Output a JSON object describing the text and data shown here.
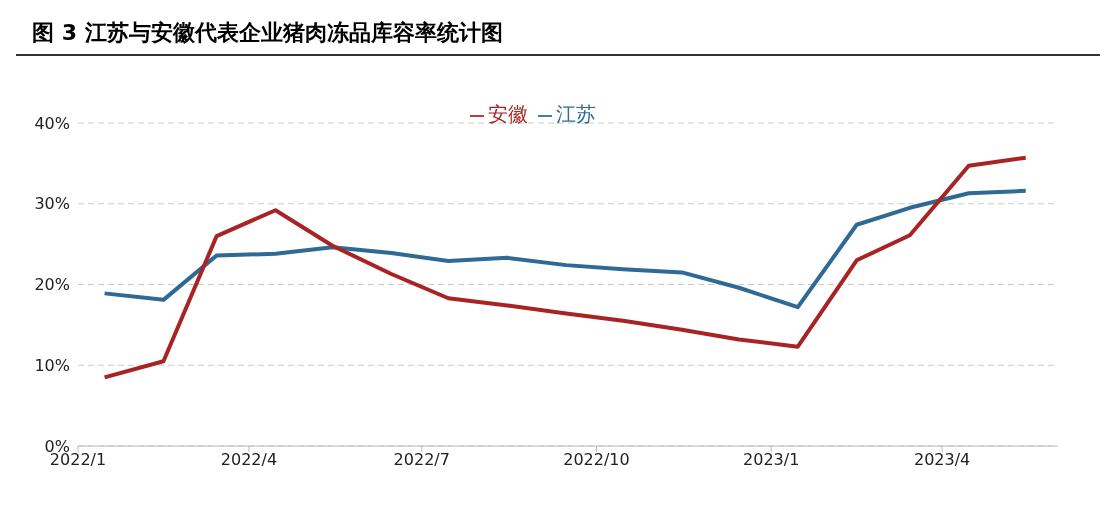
{
  "chart_data": {
    "type": "line",
    "title": "图 3 江苏与安徽代表企业猪肉冻品库容率统计图",
    "x": [
      "2022-01-15",
      "2022-02-15",
      "2022-03-15",
      "2022-04-15",
      "2022-05-15",
      "2022-06-15",
      "2022-07-15",
      "2022-08-15",
      "2022-09-15",
      "2022-10-15",
      "2022-11-15",
      "2022-12-15",
      "2023-01-15",
      "2023-02-15",
      "2023-03-15",
      "2023-04-15",
      "2023-05-15"
    ],
    "series": [
      {
        "name": "江苏",
        "color": "#2e6a95",
        "values": [
          18.9,
          18.1,
          23.6,
          23.8,
          24.6,
          23.9,
          22.9,
          23.3,
          22.4,
          21.9,
          21.5,
          19.6,
          17.2,
          27.4,
          29.5,
          31.3,
          31.6
        ]
      },
      {
        "name": "安徽",
        "color": "#a82424",
        "values": [
          8.5,
          10.5,
          26,
          29.2,
          24.8,
          21.3,
          18.3,
          17.4,
          16.4,
          15.5,
          14.4,
          13.2,
          12.3,
          23,
          26.1,
          34.7,
          35.7
        ]
      }
    ],
    "xlim": [
      "2022-01-01",
      "2023-06-01"
    ],
    "xticks": [
      {
        "value": "2022-01-01",
        "label": "2022/1"
      },
      {
        "value": "2022-04-01",
        "label": "2022/4"
      },
      {
        "value": "2022-07-01",
        "label": "2022/7"
      },
      {
        "value": "2022-10-01",
        "label": "2022/10"
      },
      {
        "value": "2023-01-01",
        "label": "2023/1"
      },
      {
        "value": "2023-04-01",
        "label": "2023/4"
      }
    ],
    "ylim": [
      0,
      40
    ],
    "yticks": [
      {
        "value": 0,
        "label": "0%"
      },
      {
        "value": 10,
        "label": "10%"
      },
      {
        "value": 20,
        "label": "20%"
      },
      {
        "value": 30,
        "label": "30%"
      },
      {
        "value": 40,
        "label": "40%"
      }
    ],
    "grid": "y",
    "legend": "top",
    "marker": "none",
    "line_style": "solid"
  }
}
